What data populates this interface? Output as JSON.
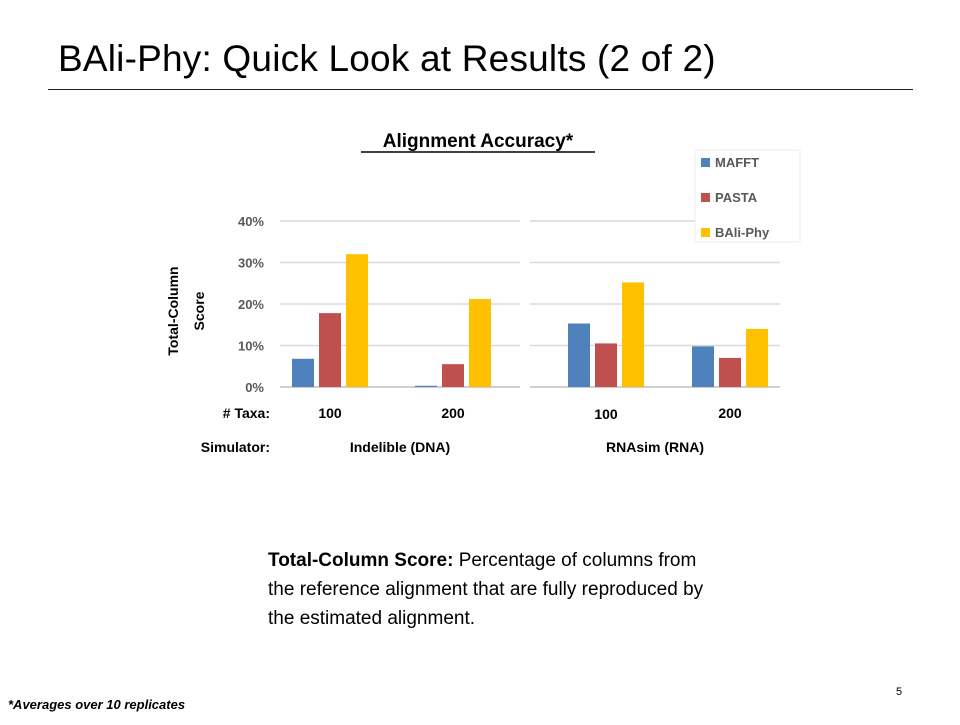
{
  "slide": {
    "title": "BAli-Phy: Quick Look at Results (2 of 2)",
    "page_number": "5",
    "footnote": "*Averages over 10 replicates",
    "definition": {
      "term": "Total-Column Score:",
      "text": " Percentage of columns from the reference alignment that are fully reproduced by the estimated alignment."
    }
  },
  "chart_data": {
    "type": "bar",
    "title": "Alignment Accuracy*",
    "ylabel": "Total-Column Score",
    "ylim": [
      0,
      40
    ],
    "yticks": [
      "0%",
      "10%",
      "20%",
      "30%",
      "40%"
    ],
    "grid": true,
    "legend_position": "top-right",
    "row_labels": {
      "taxa": "# Taxa:",
      "simulator": "Simulator:"
    },
    "panels": [
      {
        "simulator": "Indelible (DNA)",
        "categories": [
          "100",
          "200"
        ]
      },
      {
        "simulator": "RNAsim (RNA)",
        "categories": [
          "100",
          "200"
        ]
      }
    ],
    "series": [
      {
        "name": "MAFFT",
        "color": "#4F81BD",
        "values": [
          6.8,
          0.3,
          15.3,
          9.8
        ]
      },
      {
        "name": "PASTA",
        "color": "#C0504D",
        "values": [
          17.8,
          5.5,
          10.5,
          7.0
        ]
      },
      {
        "name": "BAli-Phy",
        "color": "#FFC000",
        "values": [
          32.0,
          21.2,
          25.2,
          14.0
        ]
      }
    ]
  }
}
